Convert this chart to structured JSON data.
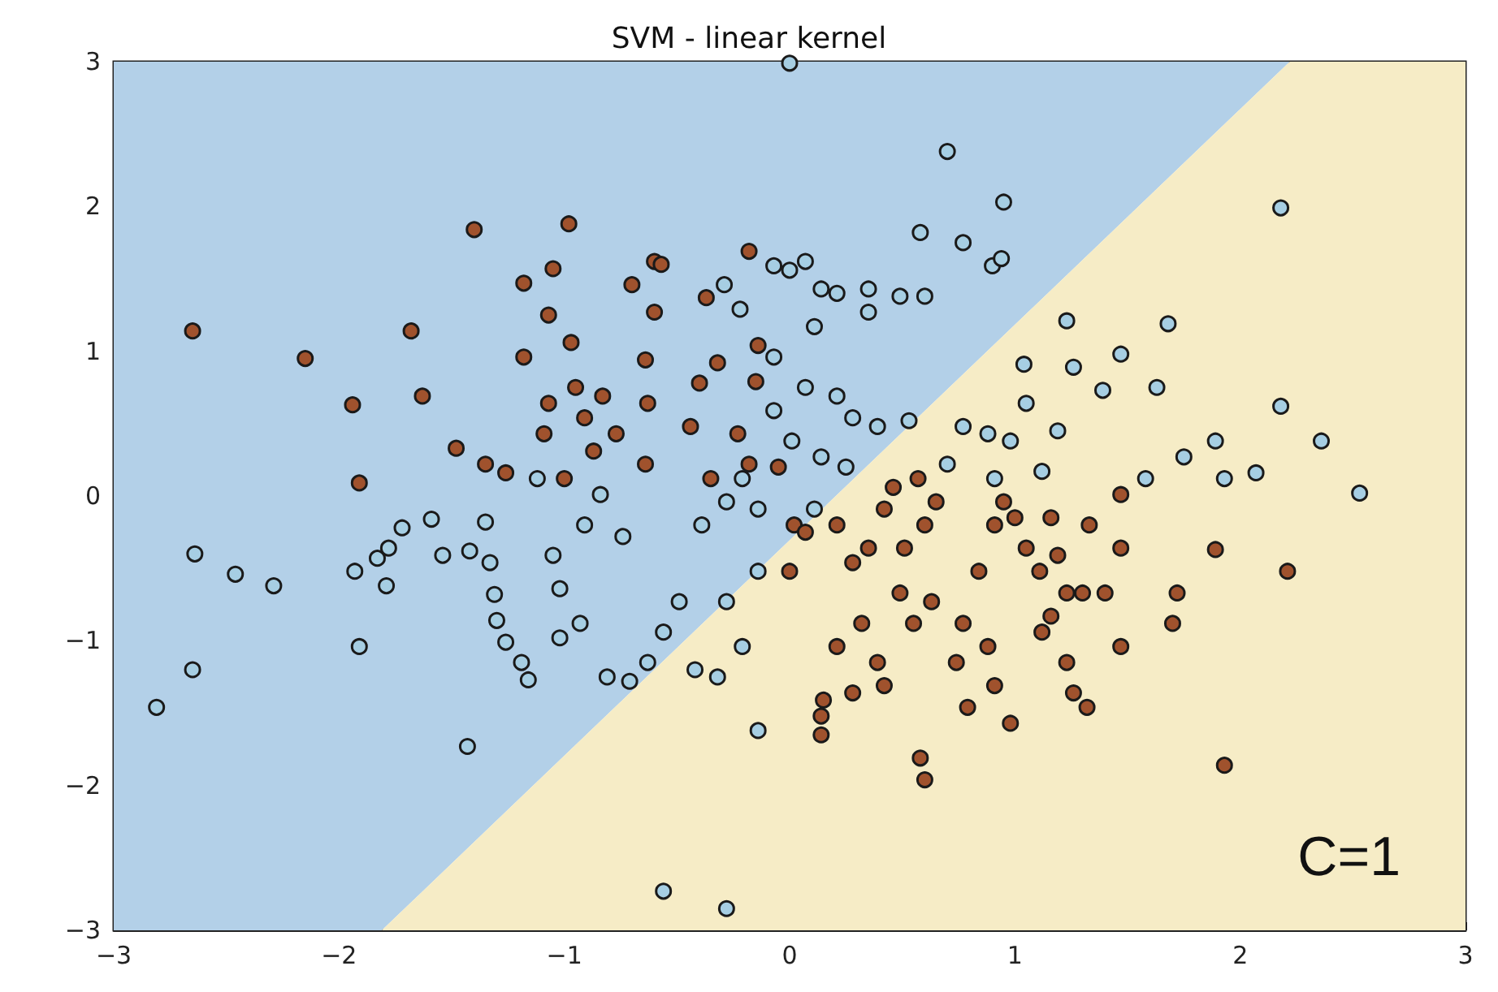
{
  "chart_data": {
    "type": "scatter",
    "title": "SVM - linear kernel",
    "annotations": [
      "C=1"
    ],
    "xlim": [
      -3,
      3
    ],
    "ylim": [
      -3,
      3
    ],
    "xticks": [
      -3,
      -2,
      -1,
      0,
      1,
      2,
      3
    ],
    "yticks": [
      -3,
      -2,
      -1,
      0,
      1,
      2,
      3
    ],
    "series": [
      {
        "type": "area",
        "color": "#b3d0e8",
        "x": [
          -3,
          -3,
          2.22,
          -1.81
        ],
        "values": [
          -3,
          3,
          3,
          -3
        ]
      },
      {
        "type": "area",
        "color": "#f6ecc6",
        "x": [
          -1.81,
          2.22,
          3,
          3
        ],
        "values": [
          -3,
          3,
          3,
          -3
        ]
      },
      {
        "color": "#a6cee3",
        "marker": "circle",
        "x": [
          -2.81,
          -2.64,
          -2.46,
          -2.65,
          -2.29,
          -1.91,
          -1.93,
          -1.83,
          -1.78,
          -1.79,
          -1.72,
          -1.59,
          -1.54,
          -1.42,
          -1.43,
          -1.35,
          -1.33,
          -1.31,
          -1.3,
          -1.26,
          -1.19,
          -1.16,
          -1.05,
          -1.02,
          -1.02,
          -1.12,
          -0.91,
          -0.93,
          -0.84,
          -0.74,
          -0.81,
          -0.71,
          -0.63,
          -0.56,
          -0.49,
          -0.42,
          -0.32,
          -0.21,
          -0.14,
          -0.56,
          -0.28,
          0,
          -0.29,
          -0.22,
          -0.07,
          0,
          0.07,
          0.14,
          0.21,
          0.11,
          -0.07,
          0.07,
          0.21,
          0.35,
          0.49,
          0.6,
          0.7,
          0.77,
          0.95,
          0.9,
          0.94,
          0.58,
          0.35,
          -0.07,
          0.01,
          0.14,
          0.25,
          0.28,
          0.39,
          0.11,
          -0.14,
          -0.21,
          -0.28,
          -0.39,
          -0.14,
          -0.28,
          0.7,
          0.77,
          0.88,
          0.91,
          0.98,
          1.04,
          1.05,
          1.19,
          1.23,
          1.26,
          1.39,
          1.47,
          1.63,
          1.68,
          1.75,
          1.89,
          1.93,
          2.07,
          2.18,
          2.18,
          2.36,
          2.53,
          1.58,
          1.12,
          0.53
        ],
        "values": [
          -1.46,
          -0.4,
          -0.54,
          -1.2,
          -0.62,
          -1.04,
          -0.52,
          -0.43,
          -0.36,
          -0.62,
          -0.22,
          -0.16,
          -0.41,
          -0.38,
          -1.73,
          -0.18,
          -0.46,
          -0.68,
          -0.86,
          -1.01,
          -1.15,
          -1.27,
          -0.41,
          -0.64,
          -0.98,
          0.12,
          -0.2,
          -0.88,
          0.01,
          -0.28,
          -1.25,
          -1.28,
          -1.15,
          -0.94,
          -0.73,
          -1.2,
          -1.25,
          -1.04,
          -1.62,
          -2.73,
          -2.85,
          2.99,
          1.46,
          1.29,
          1.59,
          1.56,
          1.62,
          1.43,
          1.4,
          1.17,
          0.96,
          0.75,
          0.69,
          1.27,
          1.38,
          1.38,
          2.38,
          1.75,
          2.03,
          1.59,
          1.64,
          1.82,
          1.43,
          0.59,
          0.38,
          0.27,
          0.2,
          0.54,
          0.48,
          -0.09,
          -0.09,
          0.12,
          -0.04,
          -0.2,
          -0.52,
          -0.73,
          0.22,
          0.48,
          0.43,
          0.12,
          0.38,
          0.91,
          0.64,
          0.45,
          1.21,
          0.89,
          0.73,
          0.98,
          0.75,
          1.19,
          0.27,
          0.38,
          0.12,
          0.16,
          1.99,
          0.62,
          0.38,
          0.02,
          0.12,
          0.17,
          0.52
        ]
      },
      {
        "color": "#a0522d",
        "marker": "circle",
        "x": [
          -2.65,
          -2.15,
          -1.94,
          -1.91,
          -1.68,
          -1.63,
          -1.4,
          -1.48,
          -1.35,
          -1.26,
          -1.18,
          -1.05,
          -0.98,
          -1.07,
          -0.97,
          -1.18,
          -0.95,
          -0.83,
          -1.07,
          -0.91,
          -1.09,
          -0.87,
          -0.77,
          -1,
          -0.7,
          -0.6,
          -0.57,
          -0.6,
          -0.64,
          -0.63,
          -0.64,
          -0.44,
          -0.37,
          -0.4,
          -0.32,
          -0.15,
          -0.23,
          -0.35,
          -0.18,
          -0.05,
          -0.18,
          -0.14,
          0.02,
          0.07,
          0,
          0.21,
          0.28,
          0.35,
          0.42,
          0.46,
          0.51,
          0.57,
          0.6,
          0.65,
          0.49,
          0.32,
          0.21,
          0.39,
          0.15,
          0.14,
          0.28,
          0.14,
          0.42,
          0.55,
          0.63,
          0.74,
          0.77,
          0.84,
          0.91,
          0.95,
          1,
          0.88,
          0.91,
          0.98,
          0.58,
          0.6,
          1.16,
          1.19,
          1.33,
          1.23,
          1.12,
          1.3,
          1.4,
          1.23,
          1.26,
          1.32,
          1.47,
          1.47,
          1.72,
          1.7,
          1.47,
          1.89,
          2.21,
          1.93,
          1.05,
          1.11,
          1.16,
          0.79
        ],
        "values": [
          1.14,
          0.95,
          0.63,
          0.09,
          1.14,
          0.69,
          1.84,
          0.33,
          0.22,
          0.16,
          1.47,
          1.57,
          1.88,
          1.25,
          1.06,
          0.96,
          0.75,
          0.69,
          0.64,
          0.54,
          0.43,
          0.31,
          0.43,
          0.12,
          1.46,
          1.62,
          1.6,
          1.27,
          0.94,
          0.64,
          0.22,
          0.48,
          1.37,
          0.78,
          0.92,
          0.79,
          0.43,
          0.12,
          0.22,
          0.2,
          1.69,
          1.04,
          -0.2,
          -0.25,
          -0.52,
          -0.2,
          -0.46,
          -0.36,
          -0.09,
          0.06,
          -0.36,
          0.12,
          -0.2,
          -0.04,
          -0.67,
          -0.88,
          -1.04,
          -1.15,
          -1.41,
          -1.52,
          -1.36,
          -1.65,
          -1.31,
          -0.88,
          -0.73,
          -1.15,
          -0.88,
          -0.52,
          -0.2,
          -0.04,
          -0.15,
          -1.04,
          -1.31,
          -1.57,
          -1.81,
          -1.96,
          -0.15,
          -0.41,
          -0.2,
          -0.67,
          -0.94,
          -0.67,
          -0.67,
          -1.15,
          -1.36,
          -1.46,
          0.01,
          -0.36,
          -0.67,
          -0.88,
          -1.04,
          -0.37,
          -0.52,
          -1.86,
          -0.36,
          -0.52,
          -0.83,
          -1.46
        ]
      }
    ]
  }
}
